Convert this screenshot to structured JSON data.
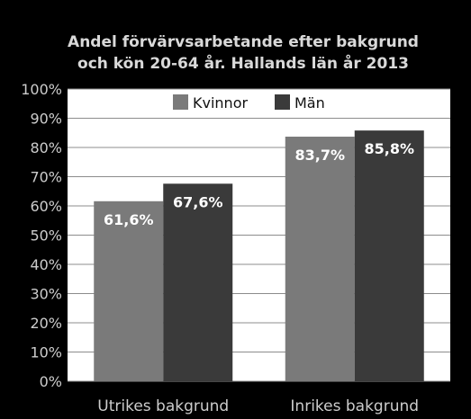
{
  "chart_data": {
    "type": "bar",
    "title_lines": [
      "Andel förvärvsarbetande efter bakgrund",
      "och kön 20-64 år. Hallands län år 2013"
    ],
    "categories": [
      "Utrikes bakgrund",
      "Inrikes bakgrund"
    ],
    "series": [
      {
        "name": "Kvinnor",
        "values": [
          61.6,
          83.7
        ],
        "labels": [
          "61,6%",
          "83,7%"
        ],
        "color": "#7a7a7a"
      },
      {
        "name": "Män",
        "values": [
          67.6,
          85.8
        ],
        "labels": [
          "67,6%",
          "85,8%"
        ],
        "color": "#3a3a3a"
      }
    ],
    "yticks": [
      {
        "value": 0,
        "label": "0%"
      },
      {
        "value": 10,
        "label": "10%"
      },
      {
        "value": 20,
        "label": "20%"
      },
      {
        "value": 30,
        "label": "30%"
      },
      {
        "value": 40,
        "label": "40%"
      },
      {
        "value": 50,
        "label": "50%"
      },
      {
        "value": 60,
        "label": "60%"
      },
      {
        "value": 70,
        "label": "70%"
      },
      {
        "value": 80,
        "label": "80%"
      },
      {
        "value": 90,
        "label": "90%"
      },
      {
        "value": 100,
        "label": "100%"
      }
    ],
    "ylim": [
      0,
      100
    ],
    "grid": true,
    "legend_position": "top-center",
    "plot_background": "#ffffff",
    "grid_color": "#8c8c8c"
  }
}
